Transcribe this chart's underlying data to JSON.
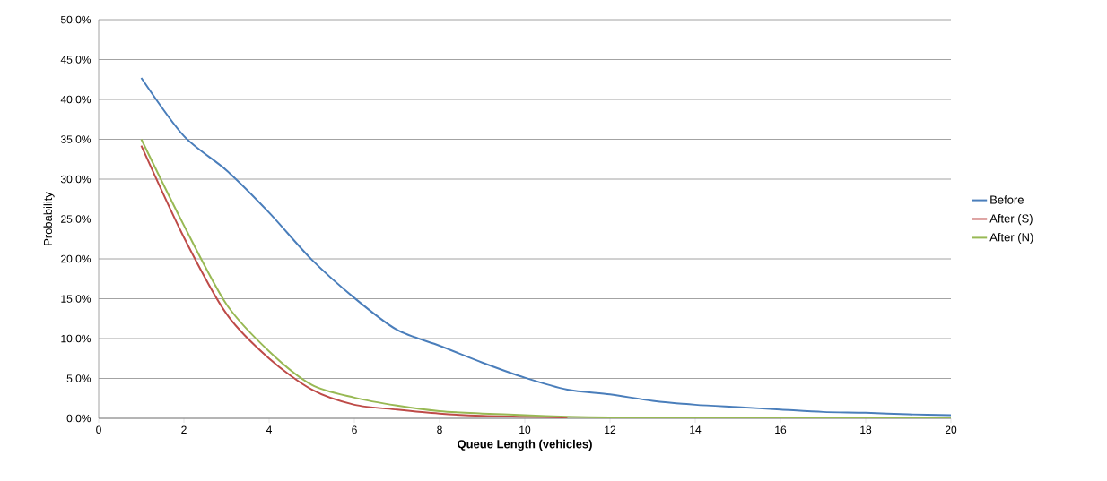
{
  "chart_data": {
    "type": "line",
    "xlabel": "Queue Length (vehicles)",
    "ylabel": "Probability",
    "x": [
      1,
      2,
      3,
      4,
      5,
      6,
      7,
      8,
      9,
      10,
      11,
      12,
      13,
      14,
      15,
      16,
      17,
      18,
      19,
      20
    ],
    "series": [
      {
        "name": "Before",
        "color": "#4a7ebb",
        "values": [
          42.7,
          35.4,
          31.1,
          25.8,
          19.9,
          15.1,
          11.1,
          9.1,
          7.0,
          5.1,
          3.6,
          3.0,
          2.2,
          1.7,
          1.4,
          1.1,
          0.8,
          0.7,
          0.5,
          0.4
        ]
      },
      {
        "name": "After (S)",
        "color": "#be4b48",
        "values": [
          34.2,
          22.7,
          13.1,
          7.5,
          3.6,
          1.7,
          1.1,
          0.6,
          0.3,
          0.2,
          0.1,
          null,
          null,
          null,
          null,
          null,
          null,
          null,
          null,
          null
        ]
      },
      {
        "name": "After (N)",
        "color": "#98b954",
        "values": [
          35.0,
          24.2,
          14.3,
          8.4,
          4.2,
          2.6,
          1.6,
          0.9,
          0.6,
          0.4,
          0.2,
          0.1,
          0.1,
          0.1,
          0.0,
          0.0,
          0.0,
          0.0,
          0.0,
          0.0
        ]
      }
    ],
    "xlim": [
      0,
      20
    ],
    "xticks": [
      0,
      2,
      4,
      6,
      8,
      10,
      12,
      14,
      16,
      18,
      20
    ],
    "ylim": [
      0,
      50
    ],
    "yticks": [
      {
        "value": 0,
        "label": "0.0%"
      },
      {
        "value": 5,
        "label": "5.0%"
      },
      {
        "value": 10,
        "label": "10.0%"
      },
      {
        "value": 15,
        "label": "15.0%"
      },
      {
        "value": 20,
        "label": "20.0%"
      },
      {
        "value": 25,
        "label": "25.0%"
      },
      {
        "value": 30,
        "label": "30.0%"
      },
      {
        "value": 35,
        "label": "35.0%"
      },
      {
        "value": 40,
        "label": "40.0%"
      },
      {
        "value": 45,
        "label": "45.0%"
      },
      {
        "value": 50,
        "label": "50.0%"
      }
    ],
    "grid": "y",
    "legend": "right",
    "marker": "none",
    "line_style": "solid"
  }
}
